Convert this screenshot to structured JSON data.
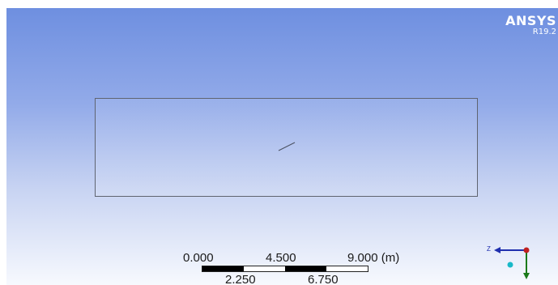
{
  "brand": {
    "name": "ANSYS",
    "version": "R19.2"
  },
  "scale_bar": {
    "top_labels": [
      "0.000",
      "4.500",
      "9.000 (m)"
    ],
    "bottom_labels": [
      "2.250",
      "6.750"
    ]
  },
  "triad": {
    "axis_label": "Z"
  },
  "colors": {
    "background_top": "#6e8fe0",
    "background_bottom": "#f7f9fe",
    "triad_z_axis": "#1f2fae",
    "triad_y_axis": "#1a7a1a",
    "triad_origin": "#c02020",
    "triad_iso_ball": "#18b8c8"
  }
}
